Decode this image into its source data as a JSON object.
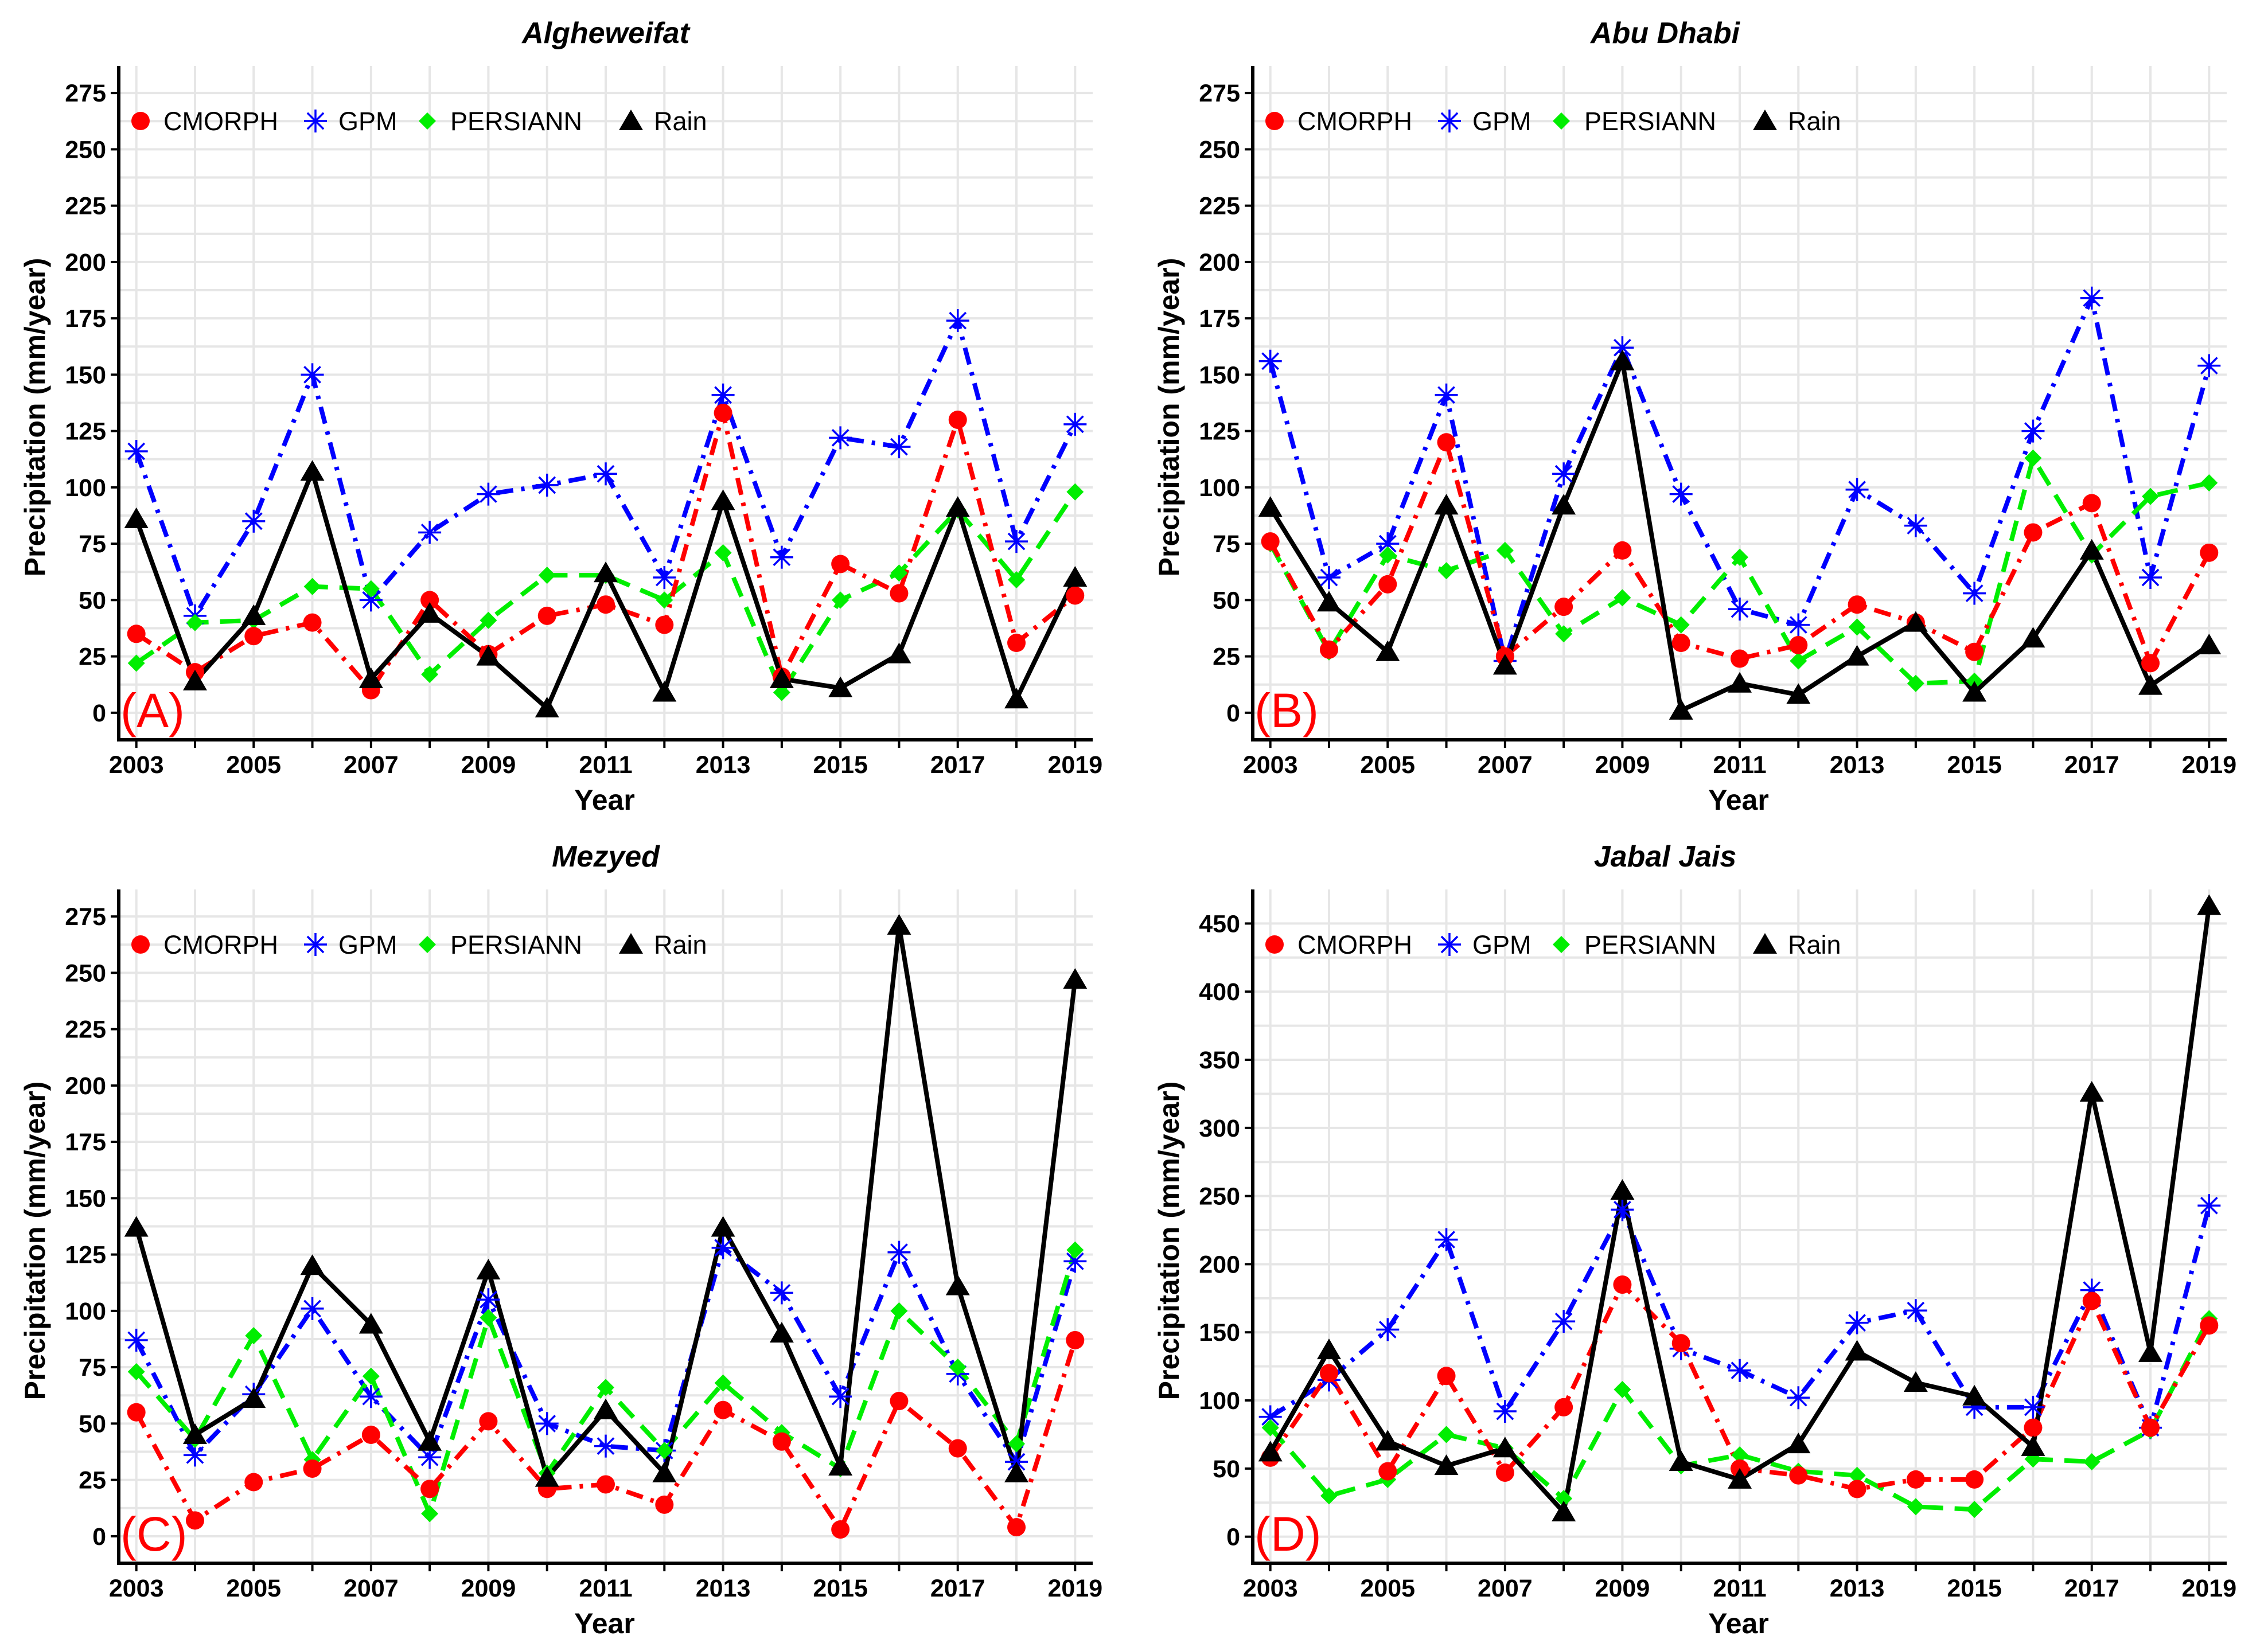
{
  "colors": {
    "CMORPH": "#ff0000",
    "GPM": "#0000ff",
    "PERSIANN": "#00ee00",
    "Rain": "#000000",
    "grid": "#e6e6e6",
    "label": "#ff0000"
  },
  "chart_data": [
    {
      "type": "line",
      "title": "Algheweifat",
      "panel_label": "(A)",
      "xlabel": "Year",
      "ylabel": "Precipitation (mm/year)",
      "x": [
        2003,
        2004,
        2005,
        2006,
        2007,
        2008,
        2009,
        2010,
        2011,
        2012,
        2013,
        2014,
        2015,
        2016,
        2017,
        2018,
        2019
      ],
      "xticks": [
        2003,
        2005,
        2007,
        2009,
        2011,
        2013,
        2015,
        2017,
        2019
      ],
      "yticks": [
        0,
        25,
        50,
        75,
        100,
        125,
        150,
        175,
        200,
        225,
        250,
        275
      ],
      "ylim": [
        -12,
        287
      ],
      "grid": true,
      "legend_position": "top-left",
      "series": [
        {
          "name": "CMORPH",
          "values": [
            35,
            18,
            34,
            40,
            10,
            50,
            26,
            43,
            48,
            39,
            133,
            16,
            66,
            53,
            130,
            31,
            52
          ]
        },
        {
          "name": "GPM",
          "values": [
            116,
            43,
            85,
            150,
            50,
            80,
            97,
            101,
            106,
            60,
            141,
            69,
            122,
            118,
            174,
            76,
            128
          ]
        },
        {
          "name": "PERSIANN",
          "values": [
            22,
            40,
            41,
            56,
            55,
            17,
            41,
            61,
            61,
            50,
            71,
            9,
            50,
            62,
            90,
            59,
            98
          ]
        },
        {
          "name": "Rain",
          "values": [
            86,
            14,
            43,
            107,
            15,
            44,
            25,
            2,
            62,
            9,
            94,
            15,
            11,
            26,
            91,
            6,
            60
          ]
        }
      ]
    },
    {
      "type": "line",
      "title": "Abu Dhabi",
      "panel_label": "(B)",
      "xlabel": "Year",
      "ylabel": "Precipitation (mm/year)",
      "x": [
        2003,
        2004,
        2005,
        2006,
        2007,
        2008,
        2009,
        2010,
        2011,
        2012,
        2013,
        2014,
        2015,
        2016,
        2017,
        2018,
        2019
      ],
      "xticks": [
        2003,
        2005,
        2007,
        2009,
        2011,
        2013,
        2015,
        2017,
        2019
      ],
      "yticks": [
        0,
        25,
        50,
        75,
        100,
        125,
        150,
        175,
        200,
        225,
        250,
        275
      ],
      "ylim": [
        -12,
        287
      ],
      "grid": true,
      "legend_position": "top-left",
      "series": [
        {
          "name": "CMORPH",
          "values": [
            76,
            28,
            57,
            120,
            25,
            47,
            72,
            31,
            24,
            30,
            48,
            40,
            27,
            80,
            93,
            22,
            71
          ]
        },
        {
          "name": "GPM",
          "values": [
            156,
            60,
            75,
            141,
            23,
            106,
            162,
            97,
            46,
            39,
            99,
            83,
            53,
            125,
            184,
            60,
            154
          ]
        },
        {
          "name": "PERSIANN",
          "values": [
            75,
            27,
            70,
            63,
            72,
            35,
            51,
            39,
            69,
            23,
            38,
            13,
            14,
            113,
            70,
            96,
            102
          ]
        },
        {
          "name": "Rain",
          "values": [
            91,
            49,
            27,
            92,
            21,
            92,
            156,
            1,
            13,
            8,
            25,
            40,
            9,
            33,
            72,
            12,
            30
          ]
        }
      ]
    },
    {
      "type": "line",
      "title": "Mezyed",
      "panel_label": "(C)",
      "xlabel": "Year",
      "ylabel": "Precipitation (mm/year)",
      "x": [
        2003,
        2004,
        2005,
        2006,
        2007,
        2008,
        2009,
        2010,
        2011,
        2012,
        2013,
        2014,
        2015,
        2016,
        2017,
        2018,
        2019
      ],
      "xticks": [
        2003,
        2005,
        2007,
        2009,
        2011,
        2013,
        2015,
        2017,
        2019
      ],
      "yticks": [
        0,
        25,
        50,
        75,
        100,
        125,
        150,
        175,
        200,
        225,
        250,
        275
      ],
      "ylim": [
        -12,
        287
      ],
      "grid": true,
      "legend_position": "top-left",
      "series": [
        {
          "name": "CMORPH",
          "values": [
            55,
            7,
            24,
            30,
            45,
            21,
            51,
            21,
            23,
            14,
            56,
            42,
            3,
            60,
            39,
            4,
            87
          ]
        },
        {
          "name": "GPM",
          "values": [
            87,
            36,
            63,
            101,
            62,
            35,
            105,
            50,
            40,
            38,
            128,
            108,
            62,
            126,
            72,
            33,
            122
          ]
        },
        {
          "name": "PERSIANN",
          "values": [
            73,
            43,
            89,
            34,
            71,
            10,
            97,
            28,
            66,
            38,
            68,
            46,
            30,
            100,
            75,
            41,
            127
          ]
        },
        {
          "name": "Rain",
          "values": [
            137,
            45,
            61,
            120,
            94,
            42,
            118,
            26,
            56,
            28,
            137,
            90,
            31,
            271,
            111,
            28,
            247
          ]
        }
      ]
    },
    {
      "type": "line",
      "title": "Jabal Jais",
      "panel_label": "(D)",
      "xlabel": "Year",
      "ylabel": "Precipitation (mm/year)",
      "x": [
        2003,
        2004,
        2005,
        2006,
        2007,
        2008,
        2009,
        2010,
        2011,
        2012,
        2013,
        2014,
        2015,
        2016,
        2017,
        2018,
        2019
      ],
      "xticks": [
        2003,
        2005,
        2007,
        2009,
        2011,
        2013,
        2015,
        2017,
        2019
      ],
      "yticks": [
        0,
        50,
        100,
        150,
        200,
        250,
        300,
        350,
        400,
        450
      ],
      "ylim": [
        -19.5,
        475
      ],
      "grid": true,
      "legend_position": "top-left",
      "series": [
        {
          "name": "CMORPH",
          "values": [
            58,
            120,
            48,
            118,
            47,
            95,
            185,
            142,
            50,
            45,
            35,
            42,
            42,
            80,
            173,
            80,
            155
          ]
        },
        {
          "name": "GPM",
          "values": [
            88,
            115,
            152,
            218,
            92,
            158,
            240,
            138,
            122,
            102,
            157,
            166,
            95,
            95,
            181,
            80,
            243
          ]
        },
        {
          "name": "PERSIANN",
          "values": [
            80,
            30,
            42,
            75,
            65,
            28,
            108,
            52,
            60,
            48,
            45,
            22,
            20,
            57,
            55,
            78,
            160
          ]
        },
        {
          "name": "Rain",
          "values": [
            62,
            137,
            70,
            52,
            65,
            18,
            254,
            55,
            42,
            68,
            136,
            113,
            103,
            66,
            326,
            135,
            463
          ]
        }
      ]
    }
  ]
}
